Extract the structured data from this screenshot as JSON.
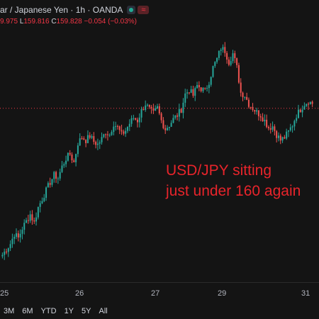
{
  "header": {
    "title": "ar / Japanese Yen · 1h · OANDA",
    "wave_icon": "≈",
    "ohlc": {
      "open_value": "9.975",
      "low_label": "L",
      "low_value": "159.816",
      "close_label": "C",
      "close_value": "159.828",
      "change": "−0.054 (−0.03%)"
    }
  },
  "annotation": {
    "line1": "USD/JPY sitting",
    "line2": "just under 160 again"
  },
  "x_axis": {
    "ticks": [
      "25",
      "26",
      "27",
      "29",
      "31"
    ]
  },
  "range_buttons": [
    "3M",
    "6M",
    "YTD",
    "1Y",
    "5Y",
    "All"
  ],
  "colors": {
    "up": "#26a69a",
    "down": "#ef5350",
    "annotation": "#e8242b",
    "price_line": "#f23645"
  },
  "chart_data": {
    "type": "candlestick",
    "symbol": "USD/JPY",
    "timeframe": "1h",
    "last_price": 159.828,
    "y_range": [
      158.6,
      160.4
    ],
    "x_ticks": [
      "25",
      "26",
      "27",
      "29",
      "31"
    ],
    "close_path": [
      158.78,
      158.82,
      158.86,
      158.93,
      158.9,
      158.97,
      159.02,
      159.07,
      159.01,
      159.12,
      159.18,
      159.24,
      159.3,
      159.35,
      159.33,
      159.41,
      159.47,
      159.5,
      159.44,
      159.58,
      159.62,
      159.6,
      159.63,
      159.59,
      159.57,
      159.61,
      159.66,
      159.64,
      159.72,
      159.69,
      159.64,
      159.67,
      159.72,
      159.76,
      159.74,
      159.81,
      159.86,
      159.82,
      159.79,
      159.83,
      159.74,
      159.68,
      159.71,
      159.75,
      159.78,
      159.82,
      159.93,
      159.96,
      159.92,
      159.99,
      159.97,
      159.95,
      160.02,
      160.12,
      160.18,
      160.26,
      160.24,
      160.16,
      160.22,
      160.12,
      159.94,
      159.92,
      159.86,
      159.83,
      159.8,
      159.78,
      159.74,
      159.69,
      159.7,
      159.64,
      159.6,
      159.62,
      159.66,
      159.71,
      159.78,
      159.82,
      159.86,
      159.88,
      159.86
    ]
  }
}
